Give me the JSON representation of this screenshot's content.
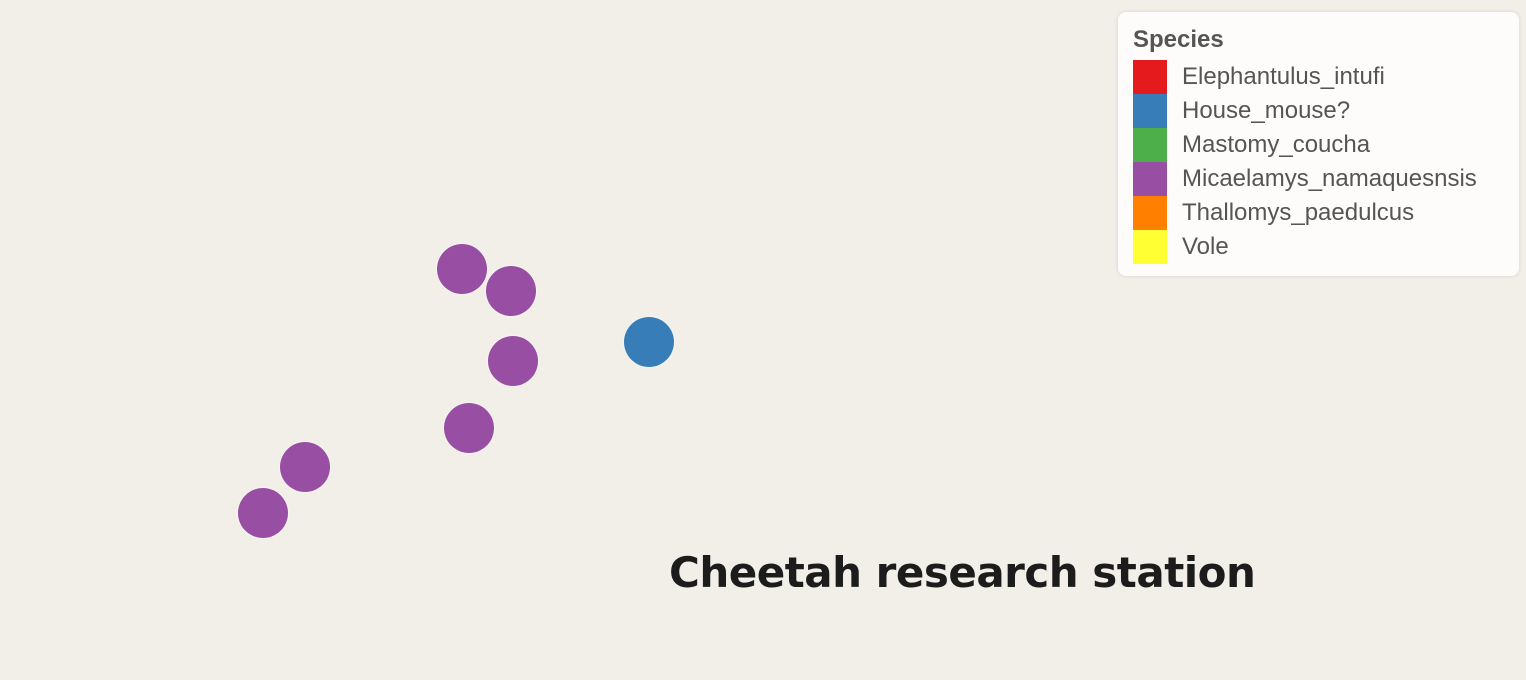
{
  "place_label": "Cheetah research station",
  "legend": {
    "title": "Species",
    "items": [
      {
        "label": "Elephantulus_intufi",
        "color": "#e41a1c"
      },
      {
        "label": "House_mouse?",
        "color": "#377eb8"
      },
      {
        "label": "Mastomy_coucha",
        "color": "#4daf4a"
      },
      {
        "label": "Micaelamys_namaquesnsis",
        "color": "#984ea3"
      },
      {
        "label": "Thallomys_paedulcus",
        "color": "#ff7f00"
      },
      {
        "label": "Vole",
        "color": "#ffff33"
      }
    ]
  },
  "observations": [
    {
      "species": "Micaelamys_namaquesnsis"
    },
    {
      "species": "Micaelamys_namaquesnsis"
    },
    {
      "species": "Micaelamys_namaquesnsis"
    },
    {
      "species": "Micaelamys_namaquesnsis"
    },
    {
      "species": "Micaelamys_namaquesnsis"
    },
    {
      "species": "Micaelamys_namaquesnsis"
    },
    {
      "species": "House_mouse?"
    }
  ]
}
